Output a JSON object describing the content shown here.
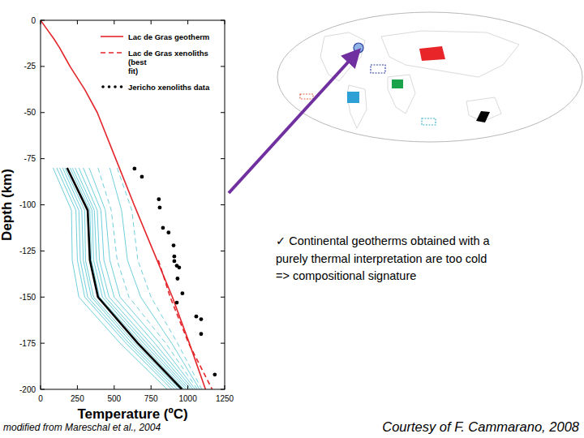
{
  "chart_data": {
    "type": "line",
    "x_label": "Temperature (ºC)",
    "y_label": "Depth (km)",
    "xlim": [
      0,
      1250
    ],
    "xticks": [
      0,
      250,
      500,
      750,
      1000,
      1250
    ],
    "ylim": [
      -200,
      0
    ],
    "yticks": [
      0,
      -25,
      -50,
      -75,
      -100,
      -125,
      -150,
      -175,
      -200
    ],
    "grid": false,
    "legend": "upper right",
    "series": [
      {
        "type": "line",
        "color": "#6fcfdc",
        "line_style": "solid",
        "x": [
          85,
          210,
          215,
          260,
          540,
          860
        ],
        "values": [
          -80,
          -103,
          -130,
          -150,
          -175,
          -200
        ]
      },
      {
        "type": "line",
        "color": "#6fcfdc",
        "line_style": "solid",
        "x": [
          110,
          240,
          250,
          300,
          580,
          890
        ],
        "values": [
          -80,
          -103,
          -130,
          -150,
          -175,
          -200
        ]
      },
      {
        "type": "line",
        "color": "#6fcfdc",
        "line_style": "solid",
        "x": [
          130,
          260,
          270,
          320,
          600,
          910
        ],
        "values": [
          -80,
          -103,
          -130,
          -150,
          -175,
          -200
        ]
      },
      {
        "type": "line",
        "color": "#6fcfdc",
        "line_style": "solid",
        "x": [
          150,
          280,
          290,
          345,
          620,
          930
        ],
        "values": [
          -80,
          -103,
          -130,
          -150,
          -175,
          -200
        ]
      },
      {
        "type": "line",
        "color": "#6fcfdc",
        "line_style": "solid",
        "x": [
          165,
          300,
          305,
          360,
          640,
          945
        ],
        "values": [
          -80,
          -103,
          -130,
          -150,
          -175,
          -200
        ]
      },
      {
        "type": "line",
        "color": "#6fcfdc",
        "line_style": "solid",
        "x": [
          200,
          335,
          345,
          400,
          680,
          975
        ],
        "values": [
          -80,
          -103,
          -130,
          -150,
          -175,
          -200
        ]
      },
      {
        "type": "line",
        "color": "#6fcfdc",
        "line_style": "solid",
        "x": [
          215,
          350,
          360,
          420,
          700,
          990
        ],
        "values": [
          -80,
          -103,
          -130,
          -150,
          -175,
          -200
        ]
      },
      {
        "type": "line",
        "color": "#6fcfdc",
        "line_style": "solid",
        "x": [
          235,
          365,
          380,
          440,
          720,
          1005
        ],
        "values": [
          -80,
          -103,
          -130,
          -150,
          -175,
          -200
        ]
      },
      {
        "type": "line",
        "color": "#6fcfdc",
        "line_style": "solid",
        "x": [
          260,
          385,
          400,
          465,
          745,
          1020
        ],
        "values": [
          -80,
          -103,
          -130,
          -150,
          -175,
          -200
        ]
      },
      {
        "type": "line",
        "color": "#6fcfdc",
        "line_style": "solid",
        "x": [
          290,
          410,
          430,
          500,
          775,
          1035
        ],
        "values": [
          -80,
          -103,
          -130,
          -150,
          -175,
          -200
        ]
      },
      {
        "type": "line",
        "color": "#6fcfdc",
        "line_style": "solid",
        "x": [
          330,
          440,
          470,
          540,
          810,
          1050
        ],
        "values": [
          -80,
          -103,
          -130,
          -150,
          -175,
          -200
        ]
      },
      {
        "type": "line",
        "color": "#6fcfdc",
        "line_style": "dashed",
        "x": [
          390,
          480,
          520,
          600,
          850,
          1065
        ],
        "values": [
          -80,
          -103,
          -130,
          -150,
          -175,
          -200
        ]
      },
      {
        "type": "line",
        "color": "#6fcfdc",
        "line_style": "solid",
        "x": [
          470,
          550,
          590,
          680,
          890,
          1080
        ],
        "values": [
          -80,
          -103,
          -130,
          -150,
          -175,
          -200
        ]
      },
      {
        "type": "line",
        "color": "#6fcfdc",
        "line_style": "dashed",
        "x": [
          520,
          620,
          660,
          750,
          930,
          1095
        ],
        "values": [
          -80,
          -103,
          -130,
          -150,
          -175,
          -200
        ]
      },
      {
        "type": "line",
        "color": "#000000",
        "line_style": "thick",
        "x": [
          180,
          320,
          335,
          390,
          660,
          960
        ],
        "values": [
          -80,
          -103,
          -130,
          -150,
          -175,
          -200
        ]
      },
      {
        "name": "Lac de Gras geotherm",
        "type": "line",
        "color": "#e3262b",
        "line_style": "solid",
        "x": [
          0,
          45,
          90,
          130,
          165,
          200,
          300,
          385,
          510,
          635,
          765,
          895,
          1010,
          1120
        ],
        "values": [
          0,
          -5,
          -10,
          -15,
          -20,
          -25,
          -37.5,
          -50,
          -75,
          -100,
          -125,
          -150,
          -175,
          -200
        ]
      },
      {
        "name": "Lac de Gras xenoliths (best fit)",
        "type": "line",
        "color": "#e3262b",
        "line_style": "dashed",
        "x": [
          800,
          880,
          1005,
          1165
        ],
        "values": [
          -130,
          -150,
          -175,
          -200
        ]
      },
      {
        "name": "Jericho xenoliths data",
        "type": "scatter",
        "color": "#000000",
        "marker": "circle",
        "x": [
          638,
          688,
          803,
          809,
          831,
          869,
          903,
          908,
          908,
          925,
          941,
          930,
          963,
          925,
          1057,
          1090,
          1090,
          1183
        ],
        "values": [
          -80.4,
          -84.8,
          -97,
          -101.5,
          -112.5,
          -115,
          -122,
          -128,
          -130.5,
          -133,
          -134,
          -140,
          -148,
          -153,
          -160.5,
          -162,
          -170,
          -192
        ]
      }
    ]
  },
  "annotation": [
    "✓ Continental geotherms obtained with a",
    "purely thermal interpretation are too cold",
    "=> compositional signature"
  ],
  "source": "modified from Mareschal et al., 2004",
  "credit": "Courtesy of F. Cammarano, 2008"
}
